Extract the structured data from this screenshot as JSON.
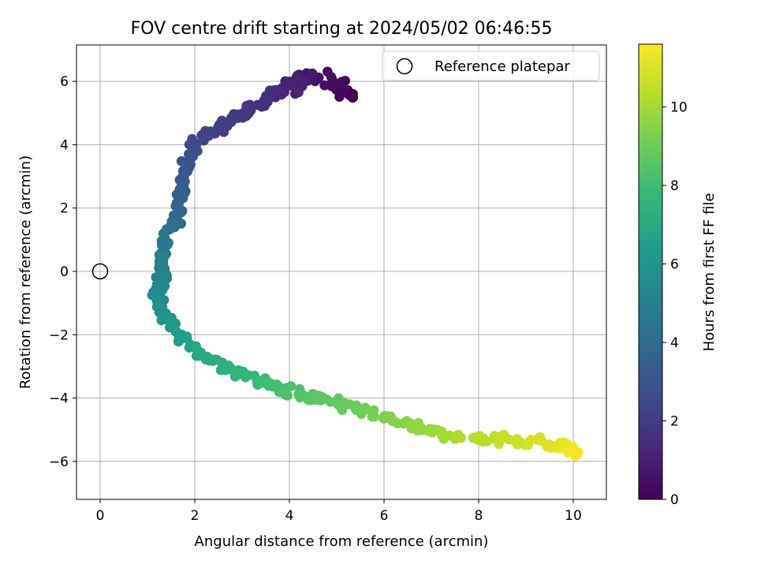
{
  "chart_data": {
    "type": "scatter",
    "title": "FOV centre drift starting at 2024/05/02 06:46:55",
    "xlabel": "Angular distance from reference (arcmin)",
    "ylabel": "Rotation from reference (arcmin)",
    "xlim": [
      -0.5,
      10.7
    ],
    "ylim": [
      -7.2,
      7.15
    ],
    "xticks": [
      0,
      2,
      4,
      6,
      8,
      10
    ],
    "yticks": [
      -6,
      -4,
      -2,
      0,
      2,
      4,
      6
    ],
    "grid": true,
    "legend": {
      "placement": "top-right",
      "entries": [
        "Reference platepar"
      ]
    },
    "reference_point": {
      "x": 0,
      "y": 0,
      "label": "Reference platepar"
    },
    "colorbar": {
      "label": "Hours from first FF file",
      "range": [
        0,
        11.6
      ],
      "ticks": [
        0,
        2,
        4,
        6,
        8,
        10
      ],
      "colormap": "viridis"
    },
    "series": [
      {
        "trajectory": [
          [
            5.2,
            5.5,
            0.0
          ],
          [
            5.0,
            6.0,
            0.3
          ],
          [
            4.2,
            6.1,
            0.8
          ],
          [
            3.9,
            5.8,
            1.2
          ],
          [
            3.4,
            5.3,
            1.6
          ],
          [
            2.9,
            4.9,
            1.9
          ],
          [
            2.4,
            4.5,
            2.2
          ],
          [
            2.0,
            4.0,
            2.6
          ],
          [
            1.8,
            3.2,
            3.0
          ],
          [
            1.7,
            2.4,
            3.5
          ],
          [
            1.6,
            1.6,
            4.0
          ],
          [
            1.4,
            0.9,
            4.5
          ],
          [
            1.3,
            0.2,
            5.0
          ],
          [
            1.25,
            -0.6,
            5.4
          ],
          [
            1.3,
            -1.2,
            5.8
          ],
          [
            1.6,
            -1.9,
            6.3
          ],
          [
            2.0,
            -2.5,
            6.8
          ],
          [
            2.5,
            -2.9,
            7.2
          ],
          [
            3.0,
            -3.3,
            7.6
          ],
          [
            3.6,
            -3.6,
            8.0
          ],
          [
            4.2,
            -3.9,
            8.4
          ],
          [
            4.8,
            -4.1,
            8.7
          ],
          [
            5.5,
            -4.4,
            9.0
          ],
          [
            6.2,
            -4.7,
            9.4
          ],
          [
            7.0,
            -5.1,
            9.8
          ],
          [
            7.8,
            -5.3,
            10.2
          ],
          [
            8.6,
            -5.3,
            10.6
          ],
          [
            9.3,
            -5.4,
            10.9
          ],
          [
            9.8,
            -5.5,
            11.2
          ],
          [
            10.1,
            -5.8,
            11.5
          ]
        ],
        "marker_count": 420
      }
    ]
  }
}
